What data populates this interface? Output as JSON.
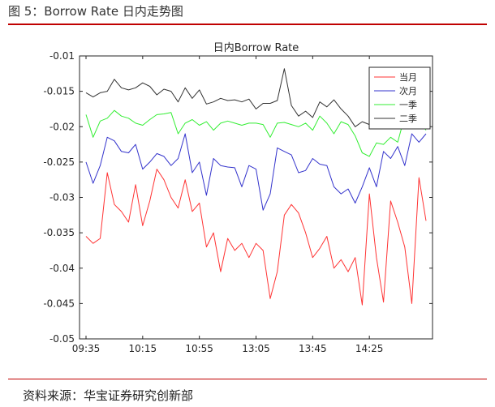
{
  "figure": {
    "caption": "图 5：Borrow Rate 日内走势图",
    "source": "资料来源：华宝证券研究创新部"
  },
  "colors": {
    "accent_rule": "#c00000",
    "axis": "#262626",
    "dangyue": "#ff3333",
    "ciyue": "#3333cc",
    "yiji": "#33ee33",
    "erji": "#333333"
  },
  "chart_data": {
    "type": "line",
    "title": "日内Borrow Rate",
    "xlabel": "",
    "ylabel": "",
    "ylim": [
      -0.05,
      -0.01
    ],
    "yticks": [
      "-0.01",
      "-0.015",
      "-0.02",
      "-0.025",
      "-0.03",
      "-0.035",
      "-0.04",
      "-0.045",
      "-0.05"
    ],
    "ytick_values": [
      -0.01,
      -0.015,
      -0.02,
      -0.025,
      -0.03,
      -0.035,
      -0.04,
      -0.045,
      -0.05
    ],
    "xlim": [
      0,
      48
    ],
    "xticks": [
      "09:35",
      "10:15",
      "10:55",
      "13:05",
      "13:45",
      "14:25"
    ],
    "xtick_positions": [
      0,
      8,
      16,
      24,
      32,
      40
    ],
    "grid": false,
    "legend_position": "top-right",
    "series": [
      {
        "name": "当月",
        "color": "#ff3333",
        "values": [
          -0.0355,
          -0.0365,
          -0.0358,
          -0.0265,
          -0.031,
          -0.032,
          -0.0335,
          -0.0282,
          -0.034,
          -0.0305,
          -0.026,
          -0.0275,
          -0.03,
          -0.0315,
          -0.0275,
          -0.032,
          -0.0308,
          -0.037,
          -0.035,
          -0.0405,
          -0.0358,
          -0.0375,
          -0.0365,
          -0.0385,
          -0.0365,
          -0.0375,
          -0.0443,
          -0.0405,
          -0.0325,
          -0.031,
          -0.0322,
          -0.035,
          -0.0385,
          -0.0372,
          -0.0355,
          -0.04,
          -0.0388,
          -0.0405,
          -0.0385,
          -0.0452,
          -0.0295,
          -0.0385,
          -0.0448,
          -0.0305,
          -0.0335,
          -0.037,
          -0.045,
          -0.0272,
          -0.0333
        ]
      },
      {
        "name": "次月",
        "color": "#3333cc",
        "values": [
          -0.025,
          -0.028,
          -0.0255,
          -0.0215,
          -0.022,
          -0.0235,
          -0.0237,
          -0.0225,
          -0.026,
          -0.025,
          -0.0238,
          -0.0242,
          -0.0255,
          -0.0245,
          -0.021,
          -0.0265,
          -0.025,
          -0.0297,
          -0.0245,
          -0.0255,
          -0.0257,
          -0.0258,
          -0.0285,
          -0.0255,
          -0.026,
          -0.0318,
          -0.0295,
          -0.023,
          -0.0235,
          -0.024,
          -0.0265,
          -0.0262,
          -0.0245,
          -0.0253,
          -0.0255,
          -0.0285,
          -0.0295,
          -0.0288,
          -0.0308,
          -0.0285,
          -0.0258,
          -0.0285,
          -0.0235,
          -0.0245,
          -0.0228,
          -0.0255,
          -0.021,
          -0.0222,
          -0.021
        ]
      },
      {
        "name": "一季",
        "color": "#33ee33",
        "values": [
          -0.0183,
          -0.0215,
          -0.0192,
          -0.0188,
          -0.0177,
          -0.0185,
          -0.0188,
          -0.0195,
          -0.0198,
          -0.019,
          -0.0183,
          -0.0182,
          -0.018,
          -0.021,
          -0.0195,
          -0.019,
          -0.0198,
          -0.0193,
          -0.0205,
          -0.0195,
          -0.0192,
          -0.0195,
          -0.0198,
          -0.0195,
          -0.0195,
          -0.0197,
          -0.0215,
          -0.0195,
          -0.0194,
          -0.0197,
          -0.02,
          -0.0195,
          -0.0205,
          -0.0185,
          -0.0195,
          -0.021,
          -0.0193,
          -0.0197,
          -0.0213,
          -0.0237,
          -0.0242,
          -0.0223,
          -0.0225,
          -0.0215,
          -0.0222,
          -0.0185,
          -0.0178,
          -0.0192,
          -0.0205
        ]
      },
      {
        "name": "二季",
        "color": "#333333",
        "values": [
          -0.0152,
          -0.0158,
          -0.0152,
          -0.015,
          -0.0133,
          -0.0145,
          -0.0148,
          -0.0145,
          -0.0138,
          -0.0143,
          -0.0155,
          -0.0147,
          -0.015,
          -0.0165,
          -0.0145,
          -0.016,
          -0.0148,
          -0.0168,
          -0.0165,
          -0.016,
          -0.0163,
          -0.0162,
          -0.0165,
          -0.0161,
          -0.0175,
          -0.0167,
          -0.0167,
          -0.0163,
          -0.0118,
          -0.017,
          -0.0185,
          -0.0178,
          -0.0187,
          -0.0165,
          -0.0172,
          -0.0162,
          -0.0175,
          -0.0185,
          -0.02,
          -0.0193,
          -0.0197,
          -0.0195,
          -0.0195,
          -0.0197,
          -0.0175,
          -0.0183,
          -0.0195,
          -0.019,
          -0.018
        ]
      }
    ]
  }
}
